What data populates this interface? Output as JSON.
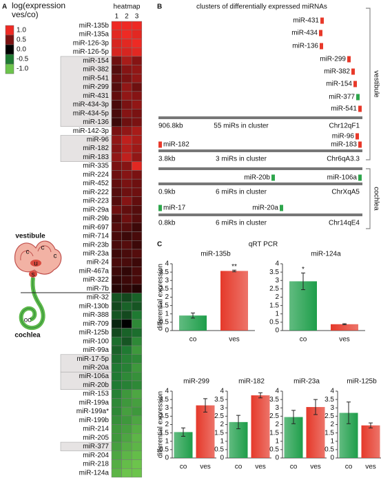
{
  "chart_data": [
    {
      "type": "heatmap",
      "panel": "A",
      "title": "heatmap",
      "colorbar_title": "log(expression ves/co)",
      "colorbar_ticks": [
        {
          "value": 1,
          "label": "1.0"
        },
        {
          "value": 0.5,
          "label": "0.5"
        },
        {
          "value": 0,
          "label": "0.0"
        },
        {
          "value": -0.5,
          "label": "-0.5"
        },
        {
          "value": -1,
          "label": "-1.0"
        }
      ],
      "colorscale": [
        "#ee2a24",
        "#7a1212",
        "#000000",
        "#1f7a32",
        "#6cc44c"
      ],
      "columns": [
        "1",
        "2",
        "3"
      ],
      "rows": [
        "miR-135b",
        "miR-135a",
        "miR-126-3p",
        "miR-126-5p",
        "miR-154",
        "miR-382",
        "miR-541",
        "miR-299",
        "miR-431",
        "miR-434-3p",
        "miR-434-5p",
        "miR-136",
        "miR-142-3p",
        "miR-96",
        "miR-182",
        "miR-183",
        "miR-335",
        "miR-224",
        "miR-452",
        "miR-222",
        "miR-223",
        "miR-29a",
        "miR-29b",
        "miR-697",
        "miR-714",
        "miR-23b",
        "miR-23a",
        "miR-24",
        "miR-467a",
        "miR-322",
        "miR-7b",
        "miR-32",
        "miR-130b",
        "miR-388",
        "miR-709",
        "miR-125b",
        "miR-100",
        "miR-99a",
        "miR-17-5p",
        "miR-20a",
        "miR-106a",
        "miR-20b",
        "miR-153",
        "miR-199a",
        "miR-199a*",
        "miR-199b",
        "miR-214",
        "miR-205",
        "miR-377",
        "miR-204",
        "miR-218",
        "miR-124a"
      ],
      "values": [
        [
          1,
          1,
          1
        ],
        [
          0.95,
          1,
          0.95
        ],
        [
          0.9,
          0.95,
          1
        ],
        [
          0.9,
          0.9,
          0.95
        ],
        [
          0.45,
          0.7,
          0.55
        ],
        [
          0.35,
          0.55,
          0.6
        ],
        [
          0.4,
          0.5,
          0.6
        ],
        [
          0.35,
          0.6,
          0.45
        ],
        [
          0.4,
          0.6,
          0.55
        ],
        [
          0.3,
          0.5,
          0.6
        ],
        [
          0.3,
          0.55,
          0.5
        ],
        [
          0.25,
          0.45,
          0.5
        ],
        [
          0.5,
          0.6,
          0.7
        ],
        [
          0.6,
          0.8,
          0.7
        ],
        [
          0.55,
          0.75,
          0.65
        ],
        [
          0.6,
          0.8,
          0.6
        ],
        [
          0.5,
          0.55,
          0.95
        ],
        [
          0.45,
          0.55,
          0.5
        ],
        [
          0.4,
          0.5,
          0.45
        ],
        [
          0.35,
          0.45,
          0.45
        ],
        [
          0.35,
          0.55,
          0.4
        ],
        [
          0.45,
          0.4,
          0.35
        ],
        [
          0.3,
          0.45,
          0.35
        ],
        [
          0.35,
          0.35,
          0.25
        ],
        [
          0.3,
          0.25,
          0.3
        ],
        [
          0.3,
          0.35,
          0.25
        ],
        [
          0.25,
          0.3,
          0.35
        ],
        [
          0.3,
          0.3,
          0.25
        ],
        [
          0.25,
          0.2,
          0.3
        ],
        [
          0.2,
          0.25,
          0.3
        ],
        [
          0.15,
          0.2,
          0.15
        ],
        [
          -0.35,
          -0.3,
          -0.4
        ],
        [
          -0.3,
          -0.4,
          -0.35
        ],
        [
          -0.35,
          -0.3,
          -0.5
        ],
        [
          -0.15,
          0,
          -0.6
        ],
        [
          -0.3,
          -0.4,
          -0.45
        ],
        [
          -0.45,
          -0.35,
          -0.6
        ],
        [
          -0.4,
          -0.5,
          -0.7
        ],
        [
          -0.45,
          -0.55,
          -0.6
        ],
        [
          -0.5,
          -0.55,
          -0.7
        ],
        [
          -0.5,
          -0.6,
          -0.65
        ],
        [
          -0.5,
          -0.55,
          -0.6
        ],
        [
          -0.55,
          -0.7,
          -0.8
        ],
        [
          -0.6,
          -0.7,
          -0.75
        ],
        [
          -0.6,
          -0.75,
          -0.7
        ],
        [
          -0.65,
          -0.7,
          -0.8
        ],
        [
          -0.7,
          -0.75,
          -0.85
        ],
        [
          -0.7,
          -0.8,
          -0.9
        ],
        [
          -0.75,
          -0.85,
          -0.9
        ],
        [
          -0.8,
          -0.9,
          -0.95
        ],
        [
          -0.85,
          -0.95,
          -1
        ],
        [
          -0.9,
          -1,
          -1
        ]
      ],
      "illustration_labels": [
        "vestibule",
        "cochlea",
        "c",
        "c",
        "c",
        "u",
        "s",
        "oc"
      ]
    },
    {
      "type": "clusters",
      "panel": "B",
      "title": "clusters of differentially expressed miRNAs",
      "groups": [
        {
          "name": "vestibule",
          "clusters": [
            {
              "size": "906.8kb",
              "count": "55 miRs in cluster",
              "location": "Chr12qF1",
              "mirs": [
                {
                  "name": "miR-431",
                  "color": "#e8392a"
                },
                {
                  "name": "miR-434",
                  "color": "#e8392a"
                },
                {
                  "name": "miR-136",
                  "color": "#e8392a"
                },
                {
                  "name": "miR-299",
                  "color": "#e8392a"
                },
                {
                  "name": "miR-382",
                  "color": "#e8392a"
                },
                {
                  "name": "miR-154",
                  "color": "#e8392a"
                },
                {
                  "name": "miR-377",
                  "color": "#2ea64c"
                },
                {
                  "name": "miR-541",
                  "color": "#e8392a"
                }
              ]
            },
            {
              "size": "3.8kb",
              "count": "3 miRs in cluster",
              "location": "Chr6qA3.3",
              "mirs": [
                {
                  "name": "miR-96",
                  "color": "#e8392a"
                },
                {
                  "name": "miR-182",
                  "color": "#e8392a"
                },
                {
                  "name": "miR-183",
                  "color": "#e8392a"
                }
              ]
            }
          ]
        },
        {
          "name": "cochlea",
          "clusters": [
            {
              "size": "0.9kb",
              "count": "6 miRs in cluster",
              "location": "ChrXqA5",
              "mirs": [
                {
                  "name": "miR-20b",
                  "color": "#2ea64c"
                },
                {
                  "name": "miR-106a",
                  "color": "#2ea64c"
                }
              ]
            },
            {
              "size": "0.8kb",
              "count": "6 miRs in cluster",
              "location": "Chr14qE4",
              "mirs": [
                {
                  "name": "miR-17",
                  "color": "#2ea64c"
                },
                {
                  "name": "miR-20a",
                  "color": "#2ea64c"
                }
              ]
            }
          ]
        }
      ]
    },
    {
      "type": "bar",
      "panel": "C",
      "panel_title": "qRT PCR",
      "title": "miR-135b",
      "ylabel": "differential expression",
      "annotation": "**",
      "categories": [
        "co",
        "ves"
      ],
      "values": [
        0.9,
        3.57
      ],
      "errors": [
        0.15,
        0.05
      ],
      "colors": [
        "#1e9e4a",
        "#e5392a"
      ],
      "ylim": [
        0,
        4
      ],
      "yticks": [
        0,
        0.5,
        1,
        1.5,
        2,
        2.5,
        3,
        3.5,
        4
      ]
    },
    {
      "type": "bar",
      "title": "miR-124a",
      "annotation": "*",
      "categories": [
        "co",
        "ves"
      ],
      "values": [
        2.95,
        0.38
      ],
      "errors": [
        0.5,
        0.03
      ],
      "colors": [
        "#1e9e4a",
        "#e5392a"
      ],
      "ylim": [
        0,
        4
      ],
      "yticks": [
        0,
        0.5,
        1,
        1.5,
        2,
        2.5,
        3,
        3.5,
        4
      ]
    },
    {
      "type": "bar",
      "title": "miR-299",
      "ylabel": "differential expression",
      "categories": [
        "co",
        "ves"
      ],
      "values": [
        1.55,
        3.15
      ],
      "errors": [
        0.25,
        0.4
      ],
      "colors": [
        "#1e9e4a",
        "#e5392a"
      ],
      "ylim": [
        0,
        4
      ],
      "yticks": [
        0,
        0.5,
        1,
        1.5,
        2,
        2.5,
        3,
        3.5,
        4
      ]
    },
    {
      "type": "bar",
      "title": "miR-182",
      "categories": [
        "co",
        "ves"
      ],
      "values": [
        2.15,
        3.75
      ],
      "errors": [
        0.4,
        0.15
      ],
      "colors": [
        "#1e9e4a",
        "#e5392a"
      ],
      "ylim": [
        0,
        4
      ],
      "yticks": [
        0,
        0.5,
        1,
        1.5,
        2,
        2.5,
        3,
        3.5,
        4
      ]
    },
    {
      "type": "bar",
      "title": "miR-23a",
      "categories": [
        "co",
        "ves"
      ],
      "values": [
        2.45,
        3.05
      ],
      "errors": [
        0.4,
        0.45
      ],
      "colors": [
        "#1e9e4a",
        "#e5392a"
      ],
      "ylim": [
        0,
        4
      ],
      "yticks": [
        0,
        0.5,
        1,
        1.5,
        2,
        2.5,
        3,
        3.5,
        4
      ]
    },
    {
      "type": "bar",
      "title": "miR-125b",
      "categories": [
        "co",
        "ves"
      ],
      "values": [
        2.7,
        1.95
      ],
      "errors": [
        0.65,
        0.15
      ],
      "colors": [
        "#1e9e4a",
        "#e5392a"
      ],
      "ylim": [
        0,
        4
      ],
      "yticks": [
        0,
        0.5,
        1,
        1.5,
        2,
        2.5,
        3,
        3.5,
        4
      ]
    }
  ]
}
